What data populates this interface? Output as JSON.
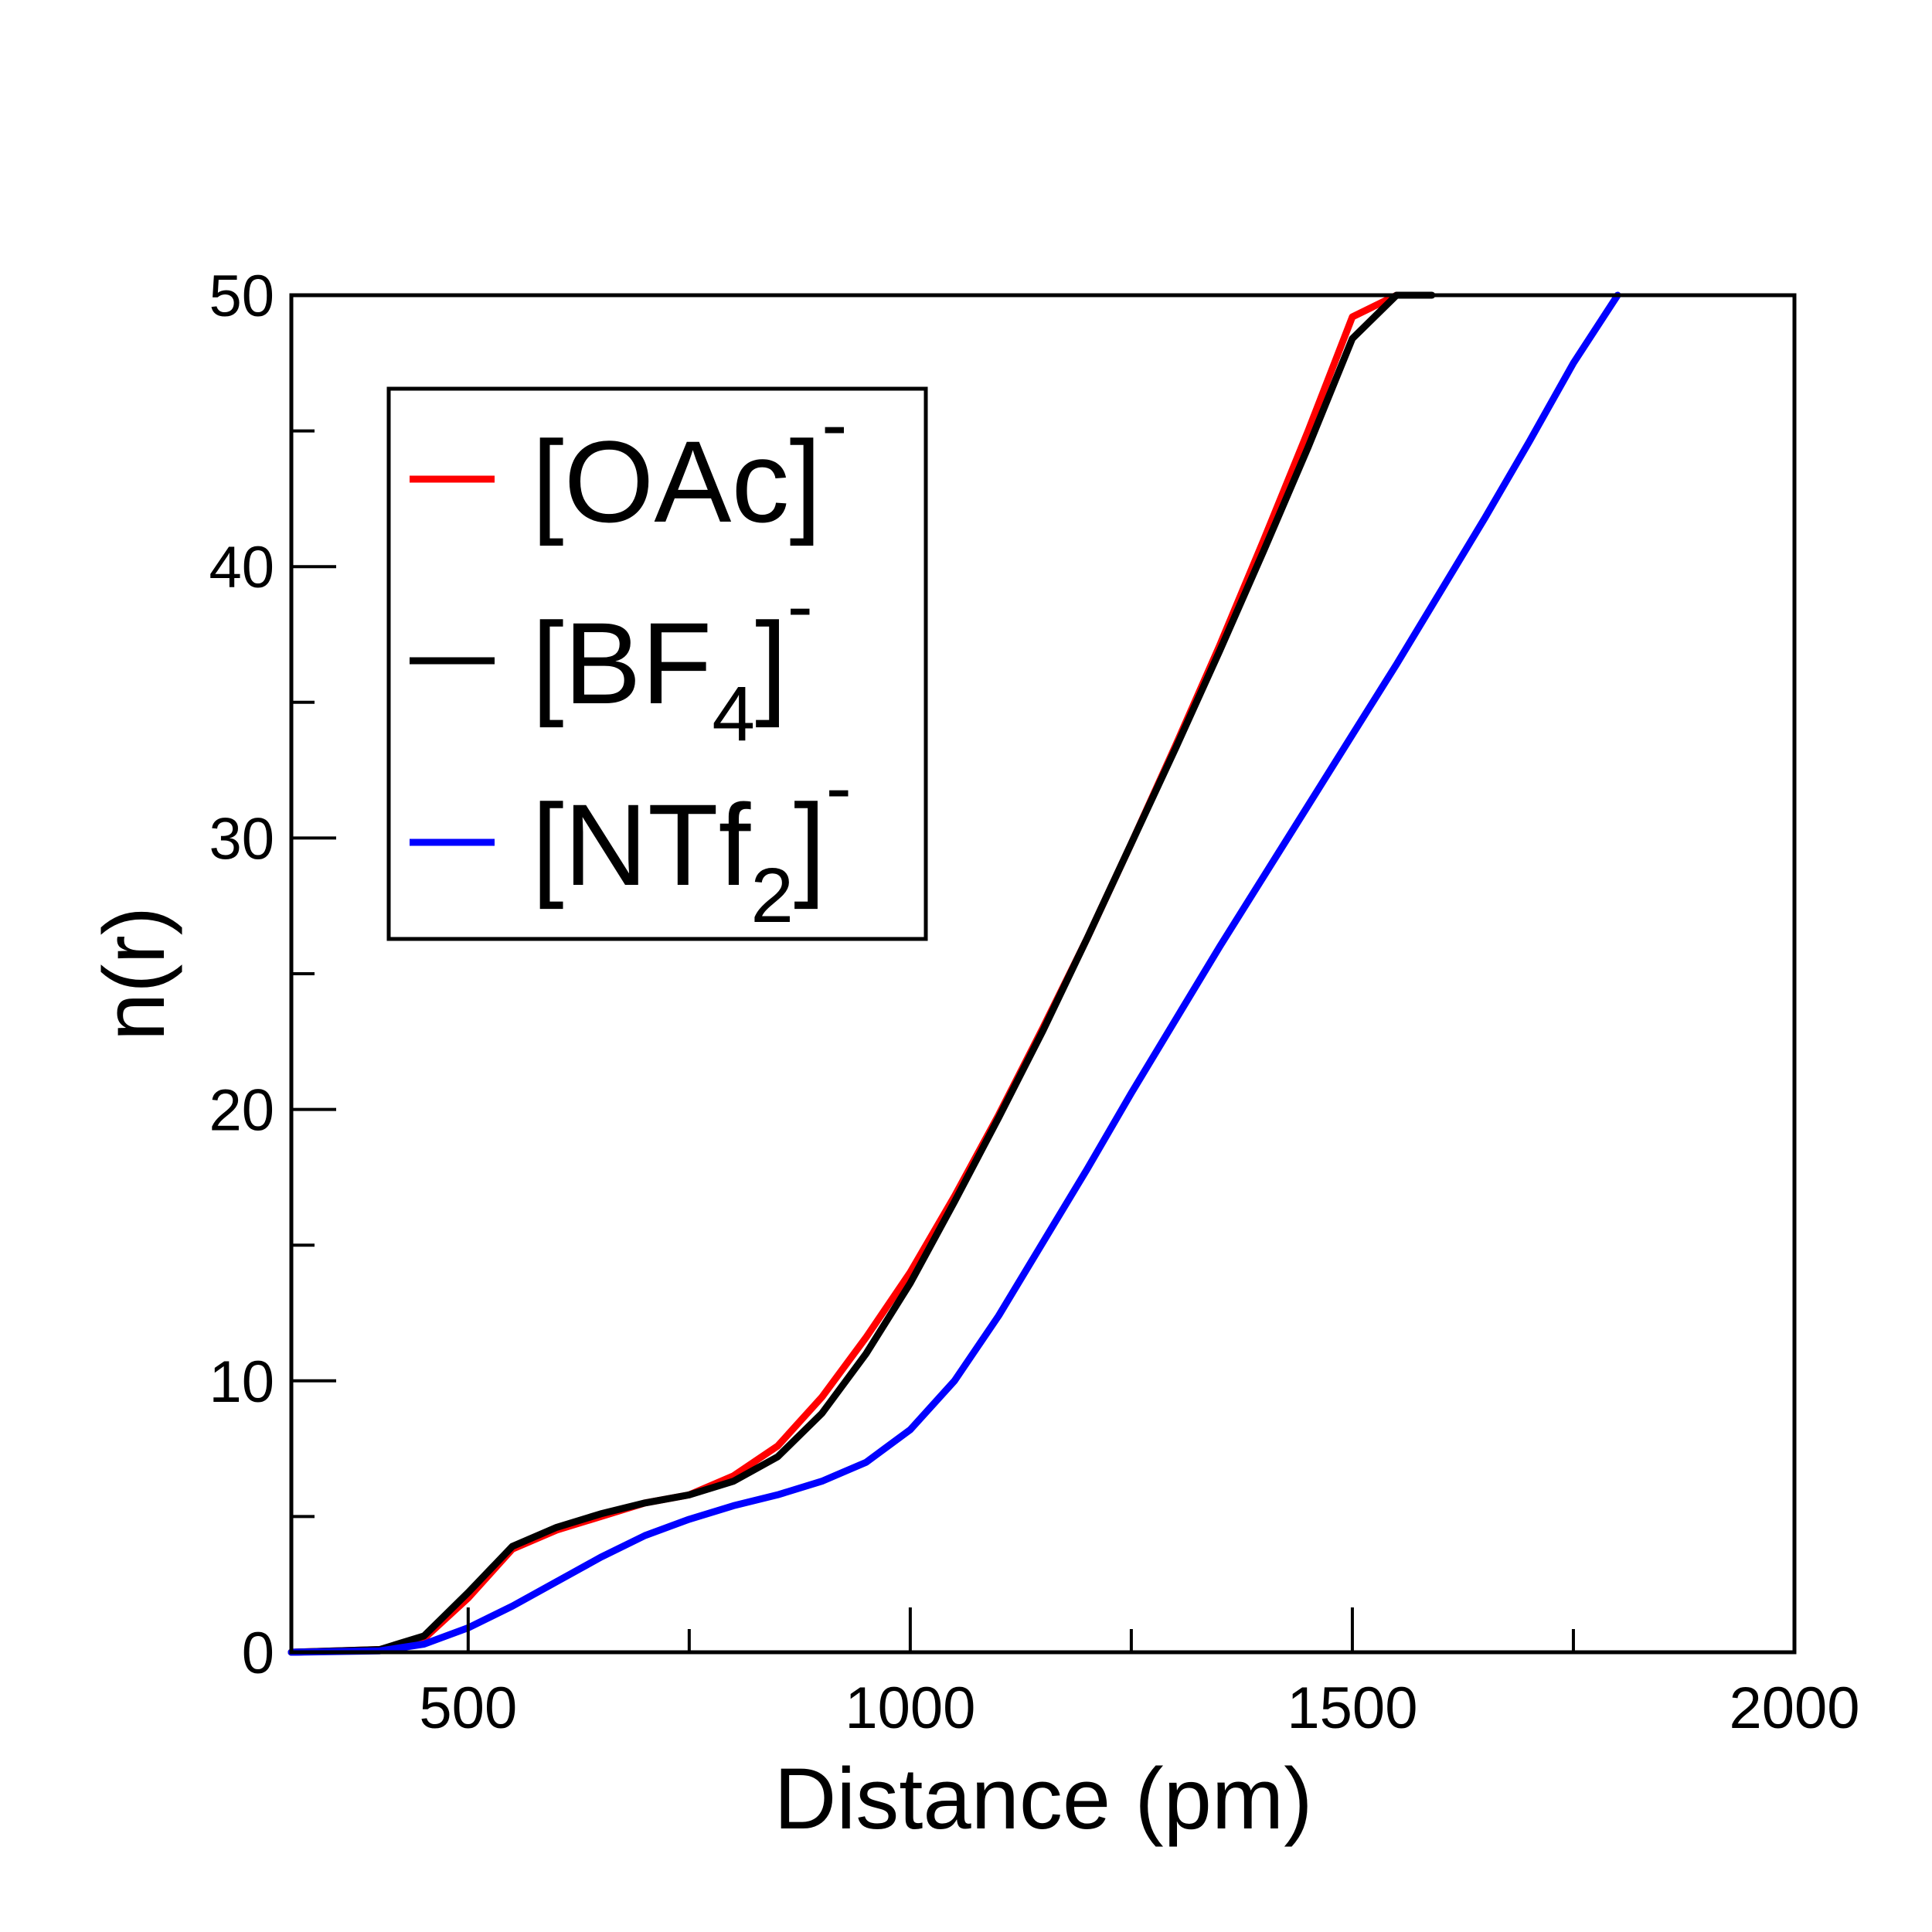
{
  "chart_data": {
    "type": "line",
    "xlabel": "Distance (pm)",
    "ylabel": "n(r)",
    "xlim": [
      300,
      2000
    ],
    "ylim": [
      0,
      50
    ],
    "xticks": [
      "500",
      "1000",
      "1500",
      "2000"
    ],
    "yticks": [
      "0",
      "10",
      "20",
      "30",
      "40",
      "50"
    ],
    "grid": false,
    "legend_position": "top-left",
    "series": [
      {
        "name": "[OAc]-",
        "label_main": "[OAc]",
        "label_sub": "",
        "label_sup": "-",
        "color": "#ff0000",
        "x": [
          300,
          400,
          450,
          500,
          550,
          600,
          650,
          700,
          750,
          800,
          850,
          900,
          950,
          1000,
          1050,
          1100,
          1150,
          1200,
          1250,
          1300,
          1350,
          1400,
          1450,
          1500,
          1550,
          1575
        ],
        "y": [
          0,
          0.1,
          0.5,
          2.0,
          3.8,
          4.5,
          5.0,
          5.5,
          5.8,
          6.5,
          7.6,
          9.4,
          11.6,
          14.0,
          16.8,
          19.8,
          23.0,
          26.3,
          29.8,
          33.4,
          37.1,
          41.0,
          45.0,
          49.2,
          50,
          50
        ]
      },
      {
        "name": "[BF4]-",
        "label_main": "[BF",
        "label_sub": "4",
        "label_sup": "-",
        "label_close": "]",
        "color": "#000000",
        "x": [
          300,
          400,
          450,
          500,
          550,
          600,
          650,
          700,
          750,
          800,
          850,
          900,
          950,
          1000,
          1050,
          1100,
          1150,
          1200,
          1250,
          1300,
          1350,
          1400,
          1450,
          1500,
          1550,
          1590
        ],
        "y": [
          0,
          0.1,
          0.6,
          2.2,
          3.9,
          4.6,
          5.1,
          5.5,
          5.8,
          6.3,
          7.2,
          8.8,
          11.0,
          13.6,
          16.6,
          19.7,
          22.9,
          26.3,
          29.8,
          33.3,
          36.9,
          40.6,
          44.4,
          48.4,
          50,
          50
        ]
      },
      {
        "name": "[NTf2]-",
        "label_main": "[NTf",
        "label_sub": "2",
        "label_sup": "-",
        "label_close": "]",
        "color": "#0000ff",
        "x": [
          300,
          400,
          450,
          500,
          550,
          600,
          650,
          700,
          750,
          800,
          850,
          900,
          950,
          1000,
          1050,
          1100,
          1150,
          1200,
          1250,
          1300,
          1350,
          1400,
          1450,
          1500,
          1550,
          1600,
          1650,
          1700,
          1750,
          1800
        ],
        "y": [
          0,
          0.05,
          0.3,
          0.9,
          1.7,
          2.6,
          3.5,
          4.3,
          4.9,
          5.4,
          5.8,
          6.3,
          7.0,
          8.2,
          10.0,
          12.4,
          15.1,
          17.8,
          20.6,
          23.3,
          26.0,
          28.6,
          31.2,
          33.8,
          36.4,
          39.1,
          41.8,
          44.6,
          47.5,
          50.0
        ]
      }
    ]
  }
}
